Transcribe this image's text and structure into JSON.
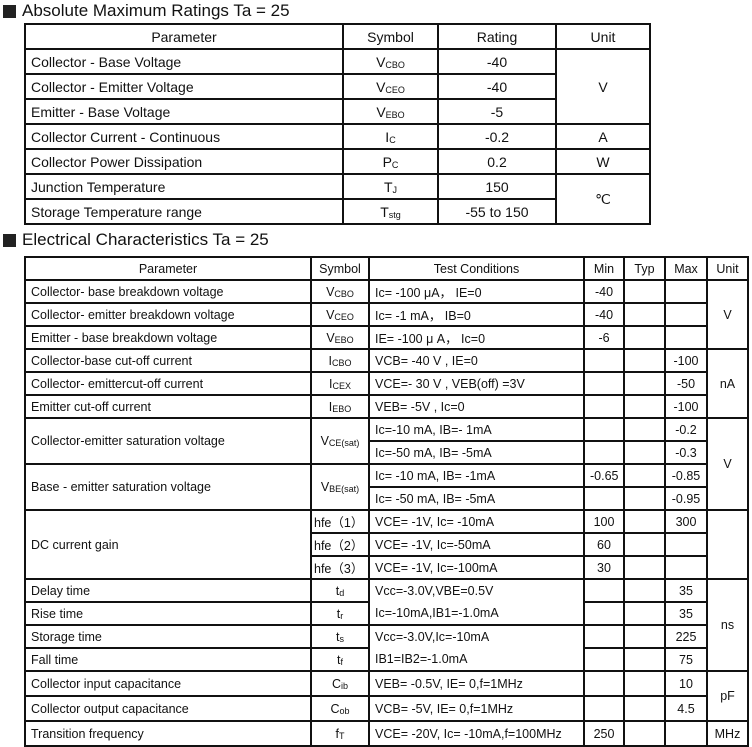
{
  "absolute": {
    "title": "Absolute Maximum Ratings Ta = 25",
    "headers": [
      "Parameter",
      "Symbol",
      "Rating",
      "Unit"
    ],
    "rows": [
      {
        "parameter": "Collector - Base Voltage",
        "symbol": "V",
        "symbol_sub": "CBO",
        "rating": "-40"
      },
      {
        "parameter": "Collector - Emitter Voltage",
        "symbol": "V",
        "symbol_sub": "CEO",
        "rating": "-40"
      },
      {
        "parameter": "Emitter - Base Voltage",
        "symbol": "V",
        "symbol_sub": "EBO",
        "rating": "-5"
      },
      {
        "parameter": "Collector Current  - Continuous",
        "symbol": "I",
        "symbol_sub": "C",
        "rating": "-0.2"
      },
      {
        "parameter": "Collector Power Dissipation",
        "symbol": "P",
        "symbol_sub": "C",
        "rating": "0.2"
      },
      {
        "parameter": "Junction Temperature",
        "symbol": "T",
        "symbol_sub": "J",
        "rating": "150"
      },
      {
        "parameter": "Storage Temperature range",
        "symbol": "T",
        "symbol_sub": "stg",
        "rating": "-55 to 150"
      }
    ],
    "units": [
      "V",
      "A",
      "W",
      "℃"
    ]
  },
  "electrical": {
    "title": "Electrical Characteristics Ta = 25",
    "headers": [
      "Parameter",
      "Symbol",
      "Test Conditions",
      "Min",
      "Typ",
      "Max",
      "Unit"
    ],
    "rows": [
      {
        "parameter": "Collector- base breakdown voltage",
        "symbol": "V",
        "symbol_sub": "CBO",
        "conditions": "Ic= -100 μA， IE=0",
        "min": "-40",
        "typ": "",
        "max": ""
      },
      {
        "parameter": "Collector- emitter breakdown voltage",
        "symbol": "V",
        "symbol_sub": "CEO",
        "conditions": "Ic= -1 mA， IB=0",
        "min": "-40",
        "typ": "",
        "max": ""
      },
      {
        "parameter": "Emitter - base breakdown voltage",
        "symbol": "V",
        "symbol_sub": "EBO",
        "conditions": "IE= -100 μ A， Ic=0",
        "min": "-6",
        "typ": "",
        "max": ""
      },
      {
        "parameter": "Collector-base cut-off current",
        "symbol": "I",
        "symbol_sub": "CBO",
        "conditions": "VCB= -40 V , IE=0",
        "min": "",
        "typ": "",
        "max": "-100"
      },
      {
        "parameter": "Collector- emittercut-off current",
        "symbol": "I",
        "symbol_sub": "CEX",
        "conditions": "VCE=- 30 V , VEB(off) =3V",
        "min": "",
        "typ": "",
        "max": "-50"
      },
      {
        "parameter": "Emitter cut-off current",
        "symbol": "I",
        "symbol_sub": "EBO",
        "conditions": "VEB= -5V , Ic=0",
        "min": "",
        "typ": "",
        "max": "-100"
      },
      {
        "parameter": "Collector-emitter saturation voltage",
        "symbol": "V",
        "symbol_sub": "CE(sat)",
        "conditions": "Ic=-10 mA, IB=- 1mA",
        "min": "",
        "typ": "",
        "max": "-0.2"
      },
      {
        "conditions": "Ic=-50 mA, IB= -5mA",
        "min": "",
        "typ": "",
        "max": "-0.3"
      },
      {
        "parameter": "Base - emitter saturation voltage",
        "symbol": "V",
        "symbol_sub": "BE(sat)",
        "conditions": "Ic= -10 mA, IB= -1mA",
        "min": "-0.65",
        "typ": "",
        "max": "-0.85"
      },
      {
        "conditions": "Ic= -50 mA, IB= -5mA",
        "min": "",
        "typ": "",
        "max": "-0.95"
      },
      {
        "parameter": "DC current gain",
        "symbol": "hfe（1）",
        "symbol_sub": "",
        "conditions": "VCE= -1V, Ic= -10mA",
        "min": "100",
        "typ": "",
        "max": "300"
      },
      {
        "symbol": "hfe（2）",
        "symbol_sub": "",
        "conditions": "VCE= -1V, Ic=-50mA",
        "min": "60",
        "typ": "",
        "max": ""
      },
      {
        "symbol": "hfe（3）",
        "symbol_sub": "",
        "conditions": "VCE= -1V, Ic=-100mA",
        "min": "30",
        "typ": "",
        "max": ""
      },
      {
        "parameter": "Delay time",
        "symbol": "t",
        "symbol_sub": "d",
        "conditions": "Vcc=-3.0V,VBE=0.5V",
        "min": "",
        "typ": "",
        "max": "35"
      },
      {
        "parameter": "Rise time",
        "symbol": "t",
        "symbol_sub": "r",
        "conditions": "Ic=-10mA,IB1=-1.0mA",
        "min": "",
        "typ": "",
        "max": "35"
      },
      {
        "parameter": "Storage time",
        "symbol": "t",
        "symbol_sub": "s",
        "conditions": "Vcc=-3.0V,Ic=-10mA",
        "min": "",
        "typ": "",
        "max": "225"
      },
      {
        "parameter": "Fall time",
        "symbol": "t",
        "symbol_sub": "f",
        "conditions": "IB1=IB2=-1.0mA",
        "min": "",
        "typ": "",
        "max": "75"
      },
      {
        "parameter": "Collector input capacitance",
        "symbol": "C",
        "symbol_sub": "ib",
        "conditions": "VEB= -0.5V, IE= 0,f=1MHz",
        "min": "",
        "typ": "",
        "max": "10"
      },
      {
        "parameter": "Collector output  capacitance",
        "symbol": "C",
        "symbol_sub": "ob",
        "conditions": "VCB= -5V, IE= 0,f=1MHz",
        "min": "",
        "typ": "",
        "max": "4.5"
      },
      {
        "parameter": "Transition frequency",
        "symbol": "f",
        "symbol_sub": "T",
        "conditions": "VCE= -20V, Ic= -10mA,f=100MHz",
        "min": "250",
        "typ": "",
        "max": ""
      }
    ],
    "units": [
      "V",
      "nA",
      "V",
      "",
      "ns",
      "pF",
      "MHz"
    ]
  }
}
